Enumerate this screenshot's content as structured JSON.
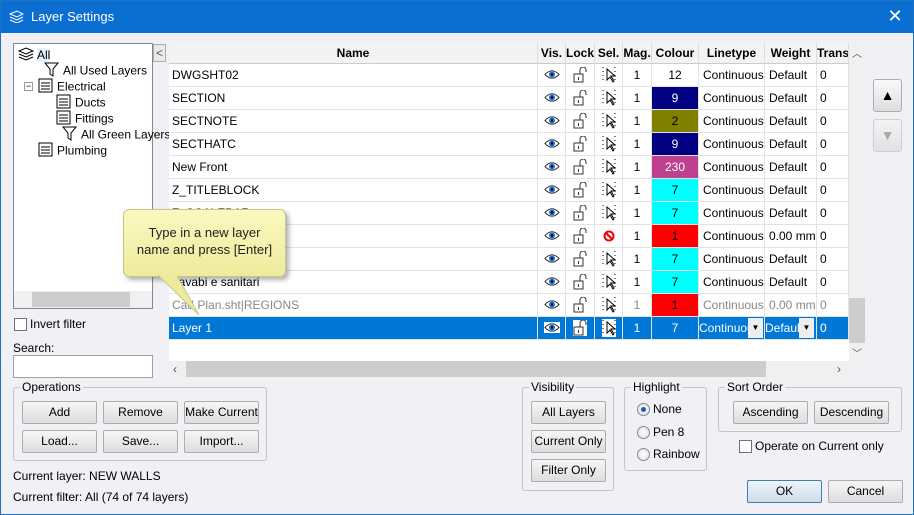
{
  "window": {
    "title": "Layer Settings",
    "close": "✕"
  },
  "tree": {
    "items": [
      {
        "label": "All",
        "icon": "layers-icon"
      },
      {
        "label": "All Used Layers",
        "icon": "filter-icon"
      },
      {
        "label": "Electrical",
        "icon": "layer-group-icon"
      },
      {
        "label": "Ducts",
        "icon": "layer-group-icon"
      },
      {
        "label": "Fittings",
        "icon": "layer-group-icon"
      },
      {
        "label": "All Green Layers",
        "icon": "filter-icon"
      },
      {
        "label": "Plumbing",
        "icon": "layer-group-icon"
      }
    ],
    "collapse": "<"
  },
  "invert_filter": {
    "label": "Invert filter",
    "checked": false
  },
  "search": {
    "label": "Search:",
    "value": ""
  },
  "grid": {
    "columns": [
      "Name",
      "Vis.",
      "Lock",
      "Sel.",
      "Mag.",
      "Colour",
      "Linetype",
      "Weight",
      "Trans"
    ],
    "rows": [
      {
        "name": "DWGSHT02",
        "sel": "arrow",
        "mag": "1",
        "colour": "12",
        "colour_hex": "#ffffff",
        "linetype": "Continuous",
        "weight": "Default",
        "trans": "0"
      },
      {
        "name": "SECTION",
        "sel": "arrow",
        "mag": "1",
        "colour": "9",
        "colour_hex": "#000080",
        "linetype": "Continuous",
        "weight": "Default",
        "trans": "0"
      },
      {
        "name": "SECTNOTE",
        "sel": "arrow",
        "mag": "1",
        "colour": "2",
        "colour_hex": "#808000",
        "linetype": "Continuous",
        "weight": "Default",
        "trans": "0"
      },
      {
        "name": "SECTHATC",
        "sel": "arrow",
        "mag": "1",
        "colour": "9",
        "colour_hex": "#000080",
        "linetype": "Continuous",
        "weight": "Default",
        "trans": "0"
      },
      {
        "name": "New Front",
        "sel": "arrow",
        "mag": "1",
        "colour": "230",
        "colour_hex": "#c04090",
        "linetype": "Continuous",
        "weight": "Default",
        "trans": "0"
      },
      {
        "name": "Z_TITLEBLOCK",
        "sel": "arrow",
        "mag": "1",
        "colour": "7",
        "colour_hex": "#00ffff",
        "linetype": "Continuous",
        "weight": "Default",
        "trans": "0"
      },
      {
        "name": "Z_SCALEBAR",
        "sel": "arrow",
        "mag": "1",
        "colour": "7",
        "colour_hex": "#00ffff",
        "linetype": "Continuous",
        "weight": "Default",
        "trans": "0"
      },
      {
        "name": "",
        "sel": "blocked",
        "mag": "1",
        "colour": "1",
        "colour_hex": "#ff0000",
        "linetype": "Continuous",
        "weight": "0.00 mm",
        "trans": "0"
      },
      {
        "name": "",
        "sel": "arrow",
        "mag": "1",
        "colour": "7",
        "colour_hex": "#00ffff",
        "linetype": "Continuous",
        "weight": "Default",
        "trans": "0"
      },
      {
        "name": "Lavabi e sanitari",
        "sel": "arrow",
        "mag": "1",
        "colour": "7",
        "colour_hex": "#00ffff",
        "linetype": "Continuous",
        "weight": "Default",
        "trans": "0"
      },
      {
        "name": "Cad Plan.sht|REGIONS",
        "sel": "arrow",
        "mag": "1",
        "colour": "1",
        "colour_hex": "#ff0000",
        "linetype": "Continuous",
        "weight": "0.00 mm",
        "trans": "0",
        "greyed": true
      },
      {
        "name": "Layer 1",
        "sel": "arrow",
        "mag": "1",
        "colour": "7",
        "colour_hex": "#0078d7",
        "linetype": "Continuous",
        "weight": "Default",
        "trans": "0",
        "selected": true
      }
    ]
  },
  "tooltip": {
    "line1": "Type in a new layer",
    "line2": "name and press [Enter]"
  },
  "operations": {
    "label": "Operations",
    "add": "Add",
    "remove": "Remove",
    "make_current": "Make Current",
    "load": "Load...",
    "save": "Save...",
    "import": "Import..."
  },
  "visibility": {
    "label": "Visibility",
    "all": "All Layers",
    "current": "Current Only",
    "filter": "Filter Only"
  },
  "highlight": {
    "label": "Highlight",
    "options": [
      "None",
      "Pen 8",
      "Rainbow"
    ],
    "selected": "None"
  },
  "sort": {
    "label": "Sort Order",
    "asc": "Ascending",
    "desc": "Descending"
  },
  "operate_current": {
    "label": "Operate on Current only",
    "checked": false
  },
  "status": {
    "current_layer": "Current layer: NEW WALLS",
    "current_filter": "Current filter: All (74 of 74 layers)"
  },
  "dialog": {
    "ok": "OK",
    "cancel": "Cancel"
  },
  "colors": {
    "accent": "#0078d7",
    "titlebar": "#0a6fd0"
  }
}
